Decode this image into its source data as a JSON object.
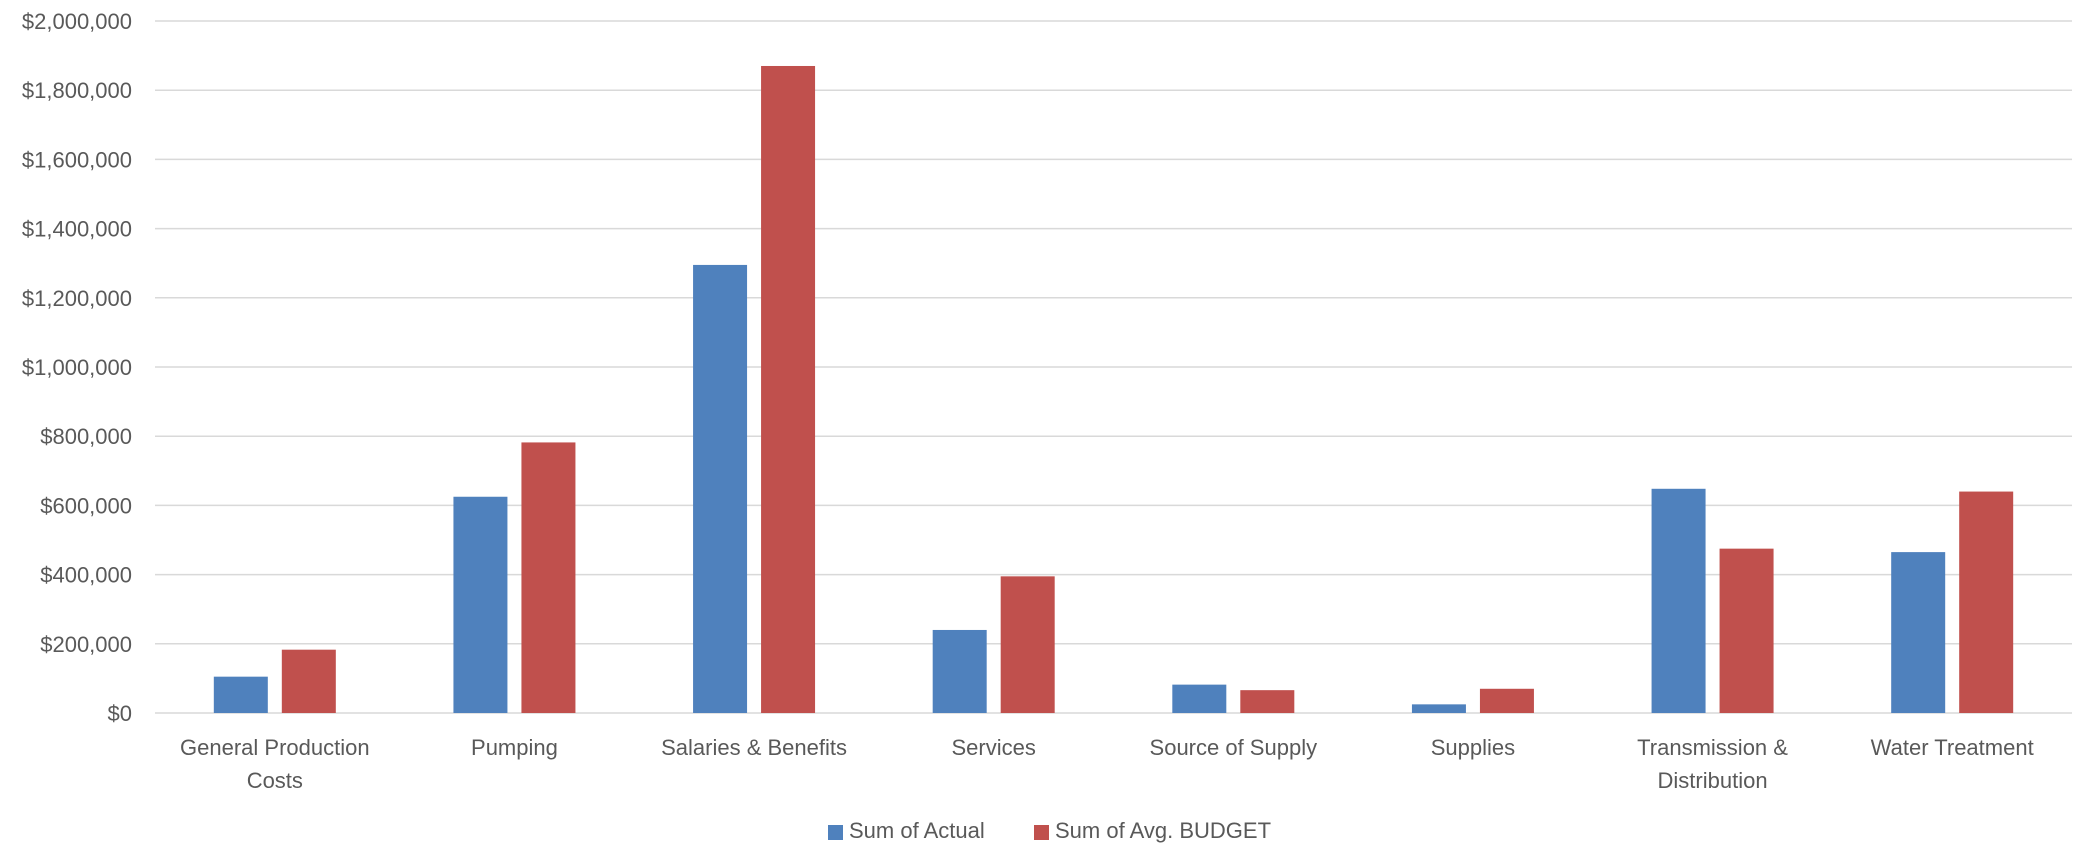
{
  "chart_data": {
    "type": "bar",
    "title": "",
    "xlabel": "",
    "ylabel": "",
    "ylim": [
      0,
      2000000
    ],
    "ytick_step": 200000,
    "ytick_labels": [
      "$0",
      "$200,000",
      "$400,000",
      "$600,000",
      "$800,000",
      "$1,000,000",
      "$1,200,000",
      "$1,400,000",
      "$1,600,000",
      "$1,800,000",
      "$2,000,000"
    ],
    "categories": [
      [
        "General Production",
        "Costs"
      ],
      [
        "Pumping"
      ],
      [
        "Salaries & Benefits"
      ],
      [
        "Services"
      ],
      [
        "Source of Supply"
      ],
      [
        "Supplies"
      ],
      [
        "Transmission &",
        "Distribution"
      ],
      [
        "Water Treatment"
      ]
    ],
    "series": [
      {
        "name": "Sum of Actual",
        "color": "#4f81bd",
        "values": [
          105000,
          625000,
          1295000,
          240000,
          82000,
          25000,
          648000,
          465000
        ]
      },
      {
        "name": "Sum of Avg. BUDGET",
        "color": "#c0504d",
        "values": [
          183000,
          782000,
          1870000,
          395000,
          66000,
          70000,
          475000,
          640000
        ]
      }
    ],
    "grid": true,
    "legend_position": "bottom"
  }
}
